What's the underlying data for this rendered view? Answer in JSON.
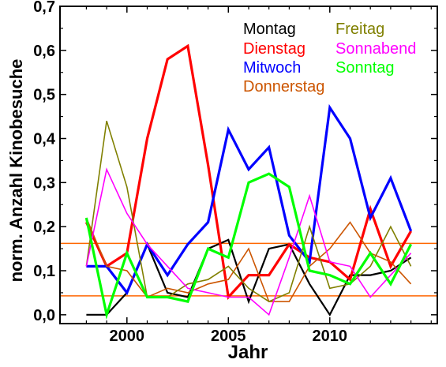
{
  "chart_data": {
    "type": "line",
    "xlabel": "Jahr",
    "ylabel": "norm. Anzahl Kinobesuche",
    "xlim": [
      1996.7,
      2015.3
    ],
    "ylim": [
      -0.02,
      0.7
    ],
    "x_ticks": [
      2000,
      2005,
      2010
    ],
    "y_ticks": [
      0.0,
      0.1,
      0.2,
      0.3,
      0.4,
      0.5,
      0.6,
      0.7
    ],
    "y_tick_labels": [
      "0,0",
      "0,1",
      "0,2",
      "0,3",
      "0,4",
      "0,5",
      "0,6",
      "0,7"
    ],
    "x": [
      1998,
      1999,
      2000,
      2001,
      2002,
      2003,
      2004,
      2005,
      2006,
      2007,
      2008,
      2009,
      2010,
      2011,
      2012,
      2013,
      2014
    ],
    "series": [
      {
        "name": "Montag",
        "color": "#000000",
        "width": 2.2,
        "values": [
          0.0,
          0.0,
          0.05,
          0.16,
          0.05,
          0.04,
          0.15,
          0.17,
          0.03,
          0.15,
          0.16,
          0.07,
          0.0,
          0.09,
          0.09,
          0.1,
          0.13
        ]
      },
      {
        "name": "Dienstag",
        "color": "#ff0000",
        "width": 3.2,
        "values": [
          0.21,
          0.11,
          0.14,
          0.4,
          0.58,
          0.61,
          0.34,
          0.04,
          0.09,
          0.09,
          0.16,
          0.13,
          0.12,
          0.08,
          0.24,
          0.11,
          0.19
        ]
      },
      {
        "name": "Mitwoch",
        "color": "#0000ff",
        "width": 3.2,
        "values": [
          0.11,
          0.11,
          0.05,
          0.16,
          0.09,
          0.16,
          0.21,
          0.42,
          0.33,
          0.38,
          0.18,
          0.12,
          0.47,
          0.4,
          0.22,
          0.31,
          0.19
        ]
      },
      {
        "name": "Donnerstag",
        "color": "#cc5500",
        "width": 1.6,
        "values": [
          0.22,
          0.11,
          0.1,
          0.04,
          0.06,
          0.05,
          0.07,
          0.08,
          0.15,
          0.03,
          0.03,
          0.11,
          0.15,
          0.21,
          0.14,
          0.12,
          0.07
        ]
      },
      {
        "name": "Freitag",
        "color": "#808000",
        "width": 1.6,
        "values": [
          0.11,
          0.44,
          0.29,
          0.04,
          0.04,
          0.07,
          0.08,
          0.11,
          0.06,
          0.03,
          0.05,
          0.2,
          0.06,
          0.07,
          0.11,
          0.2,
          0.11
        ]
      },
      {
        "name": "Sonnabend",
        "color": "#ff00ff",
        "width": 1.6,
        "values": [
          0.11,
          0.33,
          0.23,
          0.16,
          0.11,
          0.06,
          0.05,
          0.04,
          0.04,
          0.0,
          0.13,
          0.27,
          0.12,
          0.11,
          0.04,
          0.09,
          0.14
        ]
      },
      {
        "name": "Sonntag",
        "color": "#00ff00",
        "width": 3.2,
        "values": [
          0.22,
          0.0,
          0.14,
          0.04,
          0.04,
          0.03,
          0.15,
          0.13,
          0.3,
          0.32,
          0.29,
          0.1,
          0.09,
          0.07,
          0.14,
          0.07,
          0.16
        ]
      }
    ],
    "reference_lines": [
      {
        "y": 0.162,
        "color": "#ff6600"
      },
      {
        "y": 0.043,
        "color": "#ff6600"
      }
    ],
    "legend_placement": "top-right",
    "grid": false
  }
}
